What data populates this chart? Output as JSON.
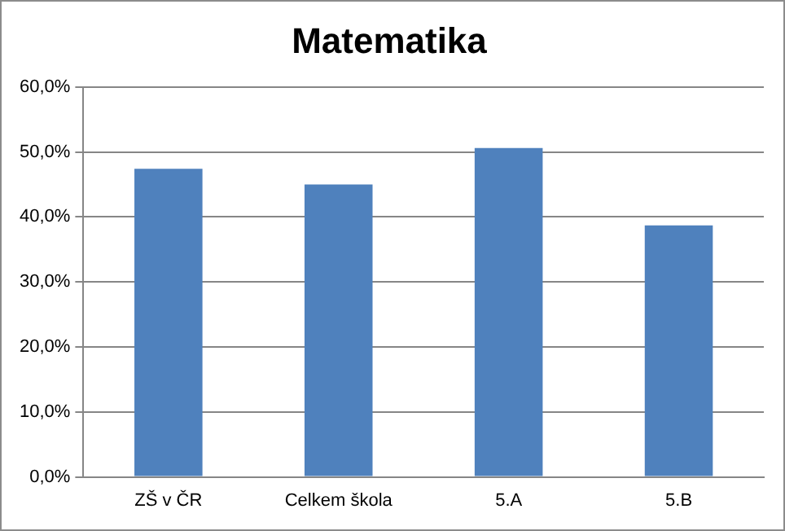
{
  "chart_data": {
    "type": "bar",
    "title": "Matematika",
    "categories": [
      "ZŠ v ČR",
      "Celkem škola",
      "5.A",
      "5.B"
    ],
    "values": [
      47.4,
      45.0,
      50.6,
      38.7
    ],
    "color": "#4f81bd",
    "ylim": [
      0,
      60
    ],
    "yticks": [
      {
        "value": 0,
        "label": "0,0%"
      },
      {
        "value": 10,
        "label": "10,0%"
      },
      {
        "value": 20,
        "label": "20,0%"
      },
      {
        "value": 30,
        "label": "30,0%"
      },
      {
        "value": 40,
        "label": "40,0%"
      },
      {
        "value": 50,
        "label": "50,0%"
      },
      {
        "value": 60,
        "label": "60,0%"
      }
    ],
    "grid": "y",
    "legend": false
  }
}
